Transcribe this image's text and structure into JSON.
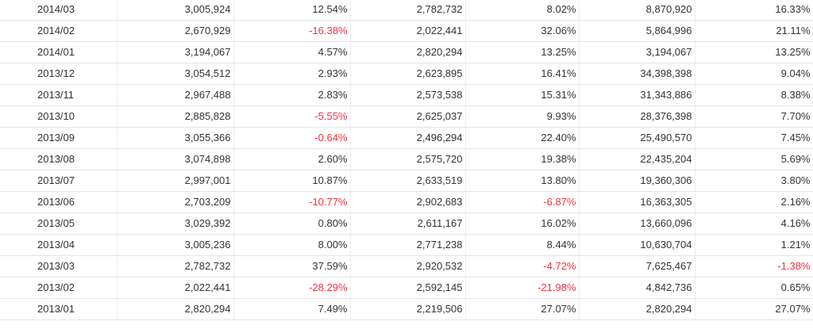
{
  "table": {
    "rows": [
      {
        "month": "2014/03",
        "v1": "3,005,924",
        "p1": "12.54%",
        "v2": "2,782,732",
        "p2": "8.02%",
        "v3": "8,870,920",
        "p3": "16.33%"
      },
      {
        "month": "2014/02",
        "v1": "2,670,929",
        "p1": "-16.38%",
        "v2": "2,022,441",
        "p2": "32.06%",
        "v3": "5,864,996",
        "p3": "21.11%"
      },
      {
        "month": "2014/01",
        "v1": "3,194,067",
        "p1": "4.57%",
        "v2": "2,820,294",
        "p2": "13.25%",
        "v3": "3,194,067",
        "p3": "13.25%"
      },
      {
        "month": "2013/12",
        "v1": "3,054,512",
        "p1": "2.93%",
        "v2": "2,623,895",
        "p2": "16.41%",
        "v3": "34,398,398",
        "p3": "9.04%"
      },
      {
        "month": "2013/11",
        "v1": "2,967,488",
        "p1": "2.83%",
        "v2": "2,573,538",
        "p2": "15.31%",
        "v3": "31,343,886",
        "p3": "8.38%"
      },
      {
        "month": "2013/10",
        "v1": "2,885,828",
        "p1": "-5.55%",
        "v2": "2,625,037",
        "p2": "9.93%",
        "v3": "28,376,398",
        "p3": "7.70%"
      },
      {
        "month": "2013/09",
        "v1": "3,055,366",
        "p1": "-0.64%",
        "v2": "2,496,294",
        "p2": "22.40%",
        "v3": "25,490,570",
        "p3": "7.45%"
      },
      {
        "month": "2013/08",
        "v1": "3,074,898",
        "p1": "2.60%",
        "v2": "2,575,720",
        "p2": "19.38%",
        "v3": "22,435,204",
        "p3": "5.69%"
      },
      {
        "month": "2013/07",
        "v1": "2,997,001",
        "p1": "10.87%",
        "v2": "2,633,519",
        "p2": "13.80%",
        "v3": "19,360,306",
        "p3": "3.80%"
      },
      {
        "month": "2013/06",
        "v1": "2,703,209",
        "p1": "-10.77%",
        "v2": "2,902,683",
        "p2": "-6.87%",
        "v3": "16,363,305",
        "p3": "2.16%"
      },
      {
        "month": "2013/05",
        "v1": "3,029,392",
        "p1": "0.80%",
        "v2": "2,611,167",
        "p2": "16.02%",
        "v3": "13,660,096",
        "p3": "4.16%"
      },
      {
        "month": "2013/04",
        "v1": "3,005,236",
        "p1": "8.00%",
        "v2": "2,771,238",
        "p2": "8.44%",
        "v3": "10,630,704",
        "p3": "1.21%"
      },
      {
        "month": "2013/03",
        "v1": "2,782,732",
        "p1": "37.59%",
        "v2": "2,920,532",
        "p2": "-4.72%",
        "v3": "7,625,467",
        "p3": "-1.38%"
      },
      {
        "month": "2013/02",
        "v1": "2,022,441",
        "p1": "-28.29%",
        "v2": "2,592,145",
        "p2": "-21.98%",
        "v3": "4,842,736",
        "p3": "0.65%"
      },
      {
        "month": "2013/01",
        "v1": "2,820,294",
        "p1": "7.49%",
        "v2": "2,219,506",
        "p2": "27.07%",
        "v3": "2,820,294",
        "p3": "27.07%"
      }
    ]
  },
  "colors": {
    "negative": "#ee3344",
    "text": "#333333",
    "border": "#e4e4e4"
  }
}
